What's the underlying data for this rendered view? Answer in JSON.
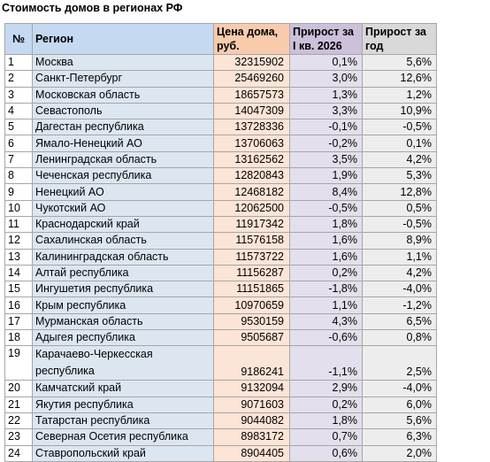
{
  "title": "Стоимость домов в регионах РФ",
  "headers": {
    "num": "№",
    "region": "Регион",
    "price": "Цена дома, руб.",
    "q1": "Прирост за I кв. 2026",
    "year": "Прирост за год"
  },
  "rows": [
    {
      "n": "1",
      "region": "Москва",
      "price": "32315902",
      "q": "0,1%",
      "y": "5,6%"
    },
    {
      "n": "2",
      "region": "Санкт-Петербург",
      "price": "25469260",
      "q": "3,0%",
      "y": "12,6%"
    },
    {
      "n": "3",
      "region": "Московская область",
      "price": "18657573",
      "q": "1,3%",
      "y": "1,2%"
    },
    {
      "n": "4",
      "region": "Севастополь",
      "price": "14047309",
      "q": "3,3%",
      "y": "10,9%"
    },
    {
      "n": "5",
      "region": "Дагестан республика",
      "price": "13728336",
      "q": "-0,1%",
      "y": "-0,5%"
    },
    {
      "n": "6",
      "region": "Ямало-Ненецкий АО",
      "price": "13706063",
      "q": "-0,2%",
      "y": "0,1%"
    },
    {
      "n": "7",
      "region": "Ленинградская область",
      "price": "13162562",
      "q": "3,5%",
      "y": "4,2%"
    },
    {
      "n": "8",
      "region": "Чеченская республика",
      "price": "12820843",
      "q": "1,9%",
      "y": "5,3%"
    },
    {
      "n": "9",
      "region": "Ненецкий АО",
      "price": "12468182",
      "q": "8,4%",
      "y": "12,8%"
    },
    {
      "n": "10",
      "region": "Чукотский АО",
      "price": "12062500",
      "q": "-0,5%",
      "y": "0,5%"
    },
    {
      "n": "11",
      "region": "Краснодарский край",
      "price": "11917342",
      "q": "1,8%",
      "y": "-0,5%"
    },
    {
      "n": "12",
      "region": "Сахалинская область",
      "price": "11576158",
      "q": "1,6%",
      "y": "8,9%"
    },
    {
      "n": "13",
      "region": "Калининградская область",
      "price": "11573722",
      "q": "1,6%",
      "y": "1,1%"
    },
    {
      "n": "14",
      "region": "Алтай республика",
      "price": "11156287",
      "q": "0,2%",
      "y": "4,2%"
    },
    {
      "n": "15",
      "region": "Ингушетия республика",
      "price": "11151865",
      "q": "-1,8%",
      "y": "-4,0%"
    },
    {
      "n": "16",
      "region": "Крым республика",
      "price": "10970659",
      "q": "1,1%",
      "y": "-1,2%"
    },
    {
      "n": "17",
      "region": "Мурманская область",
      "price": "9530159",
      "q": "4,3%",
      "y": "6,5%"
    },
    {
      "n": "18",
      "region": "Адыгея республика",
      "price": "9505687",
      "q": "-0,6%",
      "y": "0,8%"
    },
    {
      "n": "19",
      "region": "Карачаево-Черкесская республика",
      "price": "9186241",
      "q": "-1,1%",
      "y": "2,5%",
      "tall": true
    },
    {
      "n": "20",
      "region": "Камчатский край",
      "price": "9132094",
      "q": "2,9%",
      "y": "-4,0%"
    },
    {
      "n": "21",
      "region": "Якутия республика",
      "price": "9071603",
      "q": "0,2%",
      "y": "6,0%"
    },
    {
      "n": "22",
      "region": "Татарстан республика",
      "price": "9044082",
      "q": "1,8%",
      "y": "5,6%"
    },
    {
      "n": "23",
      "region": "Северная Осетия республика",
      "price": "8983172",
      "q": "0,7%",
      "y": "6,3%"
    },
    {
      "n": "24",
      "region": "Ставропольский край",
      "price": "8904405",
      "q": "0,6%",
      "y": "2,0%"
    }
  ]
}
